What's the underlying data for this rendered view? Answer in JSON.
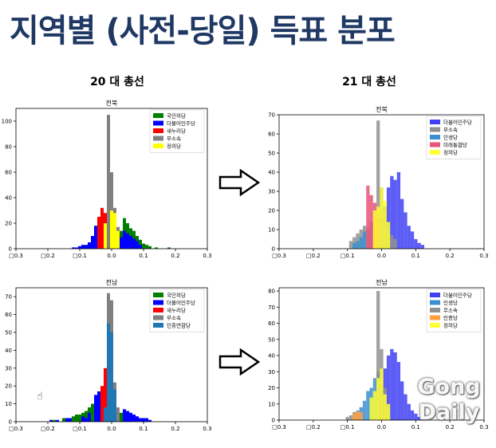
{
  "slide": {
    "title": "지역별 (사전-당일) 득표 분포",
    "col_20": "20 대 총선",
    "col_21": "21 대 총선",
    "watermark_line1": "Gong",
    "watermark_line2": "Daily"
  },
  "chart_data": [
    {
      "type": "bar",
      "title": "전북",
      "xlabel": "",
      "ylabel": "",
      "xlim": [
        -0.3,
        0.3
      ],
      "ylim": [
        0,
        110
      ],
      "xticks": [
        -0.3,
        -0.2,
        -0.1,
        0.0,
        0.1,
        0.2,
        0.3
      ],
      "xtick_labels": [
        "□0.3",
        "□0.2",
        "□0.1",
        "0.0",
        "0.1",
        "0.2",
        "0.3"
      ],
      "yticks": [
        0,
        20,
        40,
        60,
        80,
        100
      ],
      "legend": "top-right",
      "series": [
        {
          "name": "국민의당",
          "color": "#008000",
          "bins": [
            [
              0.02,
              6
            ],
            [
              0.03,
              14
            ],
            [
              0.04,
              24
            ],
            [
              0.05,
              20
            ],
            [
              0.06,
              16
            ],
            [
              0.07,
              14
            ],
            [
              0.08,
              10
            ],
            [
              0.09,
              7
            ],
            [
              0.1,
              4
            ],
            [
              0.11,
              3
            ],
            [
              0.12,
              2
            ],
            [
              0.14,
              1
            ],
            [
              0.18,
              1
            ]
          ]
        },
        {
          "name": "더불어민주당",
          "color": "#0000ff",
          "bins": [
            [
              -0.12,
              1
            ],
            [
              -0.11,
              1
            ],
            [
              -0.1,
              2
            ],
            [
              -0.09,
              3
            ],
            [
              -0.08,
              3
            ],
            [
              -0.07,
              5
            ],
            [
              -0.06,
              10
            ],
            [
              -0.05,
              18
            ],
            [
              -0.04,
              24
            ],
            [
              -0.03,
              14
            ],
            [
              0.03,
              9
            ],
            [
              0.04,
              14
            ],
            [
              0.05,
              12
            ],
            [
              0.06,
              10
            ],
            [
              0.07,
              8
            ],
            [
              0.08,
              6
            ],
            [
              0.09,
              3
            ]
          ]
        },
        {
          "name": "새누리당",
          "color": "#ff0000",
          "bins": [
            [
              -0.04,
              25
            ],
            [
              -0.03,
              32
            ],
            [
              -0.02,
              28
            ]
          ]
        },
        {
          "name": "무소속",
          "color": "#808080",
          "bins": [
            [
              -0.01,
              105
            ],
            [
              0.0,
              60
            ],
            [
              0.01,
              32
            ],
            [
              0.02,
              17
            ]
          ]
        },
        {
          "name": "정의당",
          "color": "#ffff00",
          "bins": [
            [
              -0.02,
              20
            ],
            [
              0.0,
              30
            ],
            [
              0.01,
              28
            ],
            [
              0.02,
              14
            ]
          ]
        }
      ]
    },
    {
      "type": "bar",
      "title": "전북",
      "xlabel": "",
      "ylabel": "",
      "xlim": [
        -0.3,
        0.3
      ],
      "ylim": [
        0,
        70
      ],
      "xticks": [
        -0.3,
        -0.2,
        -0.1,
        0.0,
        0.1,
        0.2,
        0.3
      ],
      "xtick_labels": [
        "□0.3",
        "□0.2",
        "□0.1",
        "0.0",
        "0.1",
        "0.2",
        "0.3"
      ],
      "yticks": [
        0,
        10,
        20,
        30,
        40,
        50,
        60,
        70
      ],
      "legend": "top-right",
      "series": [
        {
          "name": "더불어민주당",
          "color": "#3f3ff5",
          "bins": [
            [
              0.0,
              16
            ],
            [
              0.01,
              22
            ],
            [
              0.02,
              32
            ],
            [
              0.03,
              38
            ],
            [
              0.04,
              36
            ],
            [
              0.05,
              40
            ],
            [
              0.06,
              26
            ],
            [
              0.07,
              19
            ],
            [
              0.08,
              12
            ],
            [
              0.09,
              9
            ],
            [
              0.1,
              5
            ],
            [
              0.11,
              3
            ],
            [
              0.12,
              2
            ]
          ]
        },
        {
          "name": "무소속",
          "color": "#909090",
          "bins": [
            [
              -0.09,
              4
            ],
            [
              -0.08,
              6
            ],
            [
              -0.07,
              8
            ],
            [
              -0.06,
              10
            ],
            [
              -0.05,
              12
            ],
            [
              -0.04,
              11
            ],
            [
              -0.03,
              14
            ],
            [
              -0.01,
              67
            ],
            [
              0.0,
              32
            ],
            [
              0.01,
              20
            ],
            [
              0.02,
              10
            ],
            [
              0.03,
              7
            ],
            [
              0.04,
              5
            ]
          ]
        },
        {
          "name": "민생당",
          "color": "#3b8fd0",
          "bins": [
            [
              -0.08,
              3
            ],
            [
              -0.07,
              4
            ],
            [
              -0.06,
              6
            ],
            [
              -0.05,
              9
            ]
          ]
        },
        {
          "name": "미래통합당",
          "color": "#e8547a",
          "bins": [
            [
              -0.04,
              33
            ],
            [
              -0.03,
              28
            ],
            [
              -0.02,
              24
            ],
            [
              -0.01,
              16
            ]
          ]
        },
        {
          "name": "정의당",
          "color": "#ffff33",
          "bins": [
            [
              -0.02,
              20
            ],
            [
              -0.01,
              22
            ],
            [
              0.0,
              32
            ],
            [
              0.01,
              25
            ],
            [
              0.02,
              14
            ]
          ]
        }
      ]
    },
    {
      "type": "bar",
      "title": "전남",
      "xlabel": "",
      "ylabel": "",
      "xlim": [
        -0.3,
        0.3
      ],
      "ylim": [
        0,
        75
      ],
      "xticks": [
        -0.3,
        -0.2,
        -0.1,
        0.0,
        0.1,
        0.2,
        0.3
      ],
      "xtick_labels": [
        "□0.3",
        "□0.2",
        "□0.1",
        "0.0",
        "0.1",
        "0.2",
        "0.3"
      ],
      "yticks": [
        0,
        10,
        20,
        30,
        40,
        50,
        60,
        70
      ],
      "legend": "top-right",
      "series": [
        {
          "name": "국민의당",
          "color": "#008000",
          "bins": [
            [
              -0.18,
              1
            ],
            [
              -0.15,
              2
            ],
            [
              -0.12,
              3
            ],
            [
              -0.11,
              4
            ],
            [
              -0.1,
              4
            ],
            [
              -0.09,
              5
            ],
            [
              -0.08,
              6
            ],
            [
              -0.07,
              8
            ],
            [
              -0.06,
              10
            ],
            [
              0.02,
              7
            ],
            [
              0.03,
              5
            ],
            [
              0.04,
              4
            ],
            [
              0.05,
              3
            ]
          ]
        },
        {
          "name": "더불어민주당",
          "color": "#0000ff",
          "bins": [
            [
              -0.19,
              1
            ],
            [
              -0.17,
              1
            ],
            [
              -0.14,
              2
            ],
            [
              -0.13,
              2
            ],
            [
              -0.09,
              3
            ],
            [
              -0.08,
              2
            ],
            [
              -0.07,
              5
            ],
            [
              -0.05,
              15
            ],
            [
              -0.04,
              17
            ],
            [
              0.02,
              5
            ],
            [
              0.04,
              7
            ],
            [
              0.05,
              6
            ],
            [
              0.06,
              5
            ],
            [
              0.07,
              4
            ],
            [
              0.08,
              3
            ],
            [
              0.09,
              2
            ],
            [
              0.1,
              2
            ],
            [
              0.11,
              2
            ],
            [
              0.12,
              1
            ]
          ]
        },
        {
          "name": "새누리당",
          "color": "#ff0000",
          "bins": [
            [
              -0.03,
              20
            ],
            [
              -0.02,
              30
            ],
            [
              0.0,
              26
            ]
          ]
        },
        {
          "name": "무소속",
          "color": "#808080",
          "bins": [
            [
              -0.01,
              72
            ],
            [
              0.0,
              68
            ],
            [
              0.01,
              22
            ],
            [
              0.02,
              8
            ]
          ]
        },
        {
          "name": "민중연합당",
          "color": "#1f77b4",
          "bins": [
            [
              -0.02,
              8
            ],
            [
              -0.01,
              55
            ],
            [
              0.0,
              50
            ],
            [
              0.01,
              18
            ]
          ]
        }
      ]
    },
    {
      "type": "bar",
      "title": "전남",
      "xlabel": "",
      "ylabel": "",
      "xlim": [
        -0.3,
        0.3
      ],
      "ylim": [
        0,
        82
      ],
      "xticks": [
        -0.3,
        -0.2,
        -0.1,
        0.0,
        0.1,
        0.2,
        0.3
      ],
      "xtick_labels": [
        "□0.3",
        "□0.2",
        "□0.1",
        "0.0",
        "0.1",
        "0.2",
        "0.3"
      ],
      "yticks": [
        0,
        10,
        20,
        30,
        40,
        50,
        60,
        70,
        80
      ],
      "legend": "top-right",
      "series": [
        {
          "name": "더불어민주당",
          "color": "#3f3ff5",
          "bins": [
            [
              0.0,
              22
            ],
            [
              0.01,
              32
            ],
            [
              0.02,
              40
            ],
            [
              0.03,
              44
            ],
            [
              0.04,
              42
            ],
            [
              0.05,
              36
            ],
            [
              0.06,
              24
            ],
            [
              0.07,
              16
            ],
            [
              0.08,
              10
            ],
            [
              0.09,
              6
            ],
            [
              0.1,
              4
            ],
            [
              0.11,
              2
            ],
            [
              0.12,
              1
            ]
          ]
        },
        {
          "name": "민생당",
          "color": "#3b8fd0",
          "bins": [
            [
              -0.06,
              8
            ],
            [
              -0.05,
              12
            ],
            [
              -0.04,
              18
            ],
            [
              -0.03,
              20
            ],
            [
              -0.02,
              26
            ],
            [
              -0.01,
              30
            ]
          ]
        },
        {
          "name": "무소속",
          "color": "#909090",
          "bins": [
            [
              -0.1,
              2
            ],
            [
              -0.09,
              3
            ],
            [
              -0.08,
              5
            ],
            [
              -0.07,
              6
            ],
            [
              -0.01,
              80
            ],
            [
              0.0,
              44
            ],
            [
              0.01,
              20
            ],
            [
              0.02,
              8
            ]
          ]
        },
        {
          "name": "민중당",
          "color": "#ffa040",
          "bins": [
            [
              -0.08,
              4
            ],
            [
              -0.07,
              5
            ],
            [
              -0.06,
              5
            ]
          ]
        },
        {
          "name": "정의당",
          "color": "#ffff33",
          "bins": [
            [
              -0.03,
              14
            ],
            [
              -0.02,
              18
            ],
            [
              -0.01,
              26
            ],
            [
              0.0,
              32
            ],
            [
              0.01,
              16
            ],
            [
              0.02,
              10
            ]
          ]
        }
      ]
    }
  ]
}
